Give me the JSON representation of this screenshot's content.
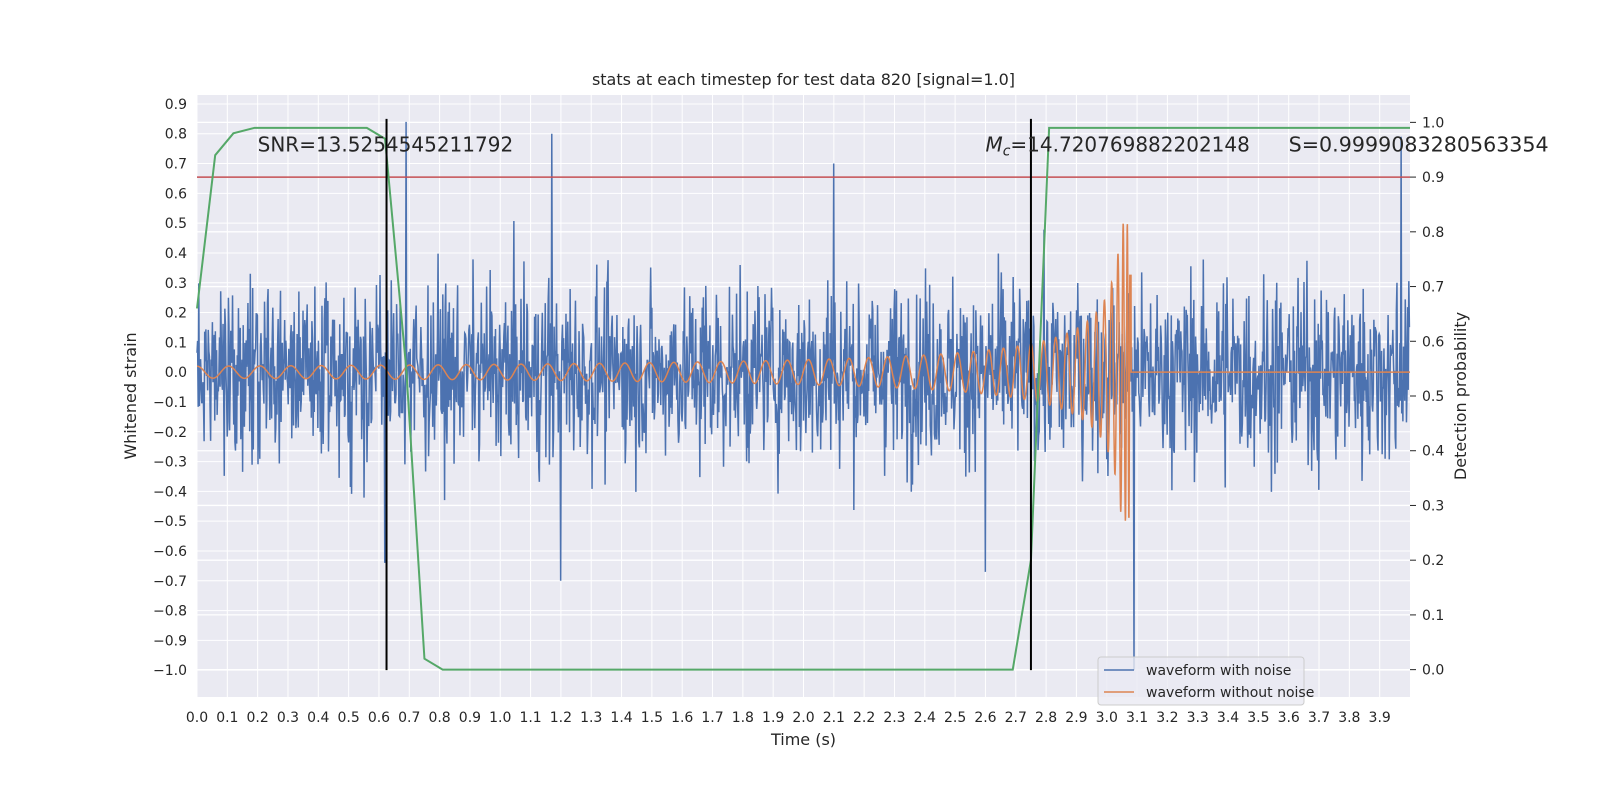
{
  "chart_data": {
    "type": "line",
    "title": "stats at each timestep for test data 820 [signal=1.0]",
    "xlabel": "Time (s)",
    "ylabel_left": "Whitened strain",
    "ylabel_right": "Detection probability",
    "xlim": [
      0.0,
      4.0
    ],
    "ylim_left": [
      -1.09,
      0.93
    ],
    "ylim_right": [
      -0.05,
      1.05
    ],
    "x_ticks": [
      "0.0",
      "0.1",
      "0.2",
      "0.3",
      "0.4",
      "0.5",
      "0.6",
      "0.7",
      "0.8",
      "0.9",
      "1.0",
      "1.1",
      "1.2",
      "1.3",
      "1.4",
      "1.5",
      "1.6",
      "1.7",
      "1.8",
      "1.9",
      "2.0",
      "2.1",
      "2.2",
      "2.3",
      "2.4",
      "2.5",
      "2.6",
      "2.7",
      "2.8",
      "2.9",
      "3.0",
      "3.1",
      "3.2",
      "3.3",
      "3.4",
      "3.5",
      "3.6",
      "3.7",
      "3.8",
      "3.9"
    ],
    "y_ticks_left": [
      "0.9",
      "0.8",
      "0.7",
      "0.6",
      "0.5",
      "0.4",
      "0.3",
      "0.2",
      "0.1",
      "0.0",
      "−0.1",
      "−0.2",
      "−0.3",
      "−0.4",
      "−0.5",
      "−0.6",
      "−0.7",
      "−0.8",
      "−0.9",
      "−1.0"
    ],
    "y_ticks_right": [
      "1.0",
      "0.9",
      "0.8",
      "0.7",
      "0.6",
      "0.5",
      "0.4",
      "0.3",
      "0.2",
      "0.1",
      "0.0"
    ],
    "series": [
      {
        "name": "waveform with noise",
        "axis": "left",
        "color": "#4c72b0",
        "description": "noisy whitened strain, amplitude roughly +/-0.5, spikes up to 0.85 and down to -1.0 near t=3.1",
        "sample_rate": 512,
        "spikes": [
          [
            0.62,
            -0.64
          ],
          [
            0.69,
            0.84
          ],
          [
            1.17,
            0.8
          ],
          [
            1.2,
            -0.7
          ],
          [
            2.1,
            0.7
          ],
          [
            2.6,
            -0.67
          ],
          [
            3.09,
            -1.0
          ],
          [
            3.97,
            0.79
          ]
        ]
      },
      {
        "name": "waveform without noise",
        "axis": "left",
        "color": "#dd8452",
        "description": "chirp signal rising in frequency and amplitude, merging at about t=3.08 s then flat at 0",
        "merger_time": 3.08,
        "initial_amplitude": 0.02,
        "peak_amplitude": 0.5
      },
      {
        "name": "detection probability",
        "axis": "right",
        "color": "#55a868",
        "x": [
          0.0,
          0.06,
          0.12,
          0.19,
          0.25,
          0.31,
          0.37,
          0.44,
          0.5,
          0.56,
          0.62,
          0.69,
          0.75,
          0.81,
          0.87,
          0.94,
          1.0,
          1.25,
          1.5,
          2.0,
          2.5,
          2.62,
          2.69,
          2.75,
          2.81,
          2.87,
          3.0,
          3.5,
          4.0
        ],
        "y": [
          0.66,
          0.94,
          0.98,
          0.99,
          0.99,
          0.99,
          0.99,
          0.99,
          0.99,
          0.99,
          0.97,
          0.55,
          0.02,
          0.0,
          0.0,
          0.0,
          0.0,
          0.0,
          0.0,
          0.0,
          0.0,
          0.0,
          0.0,
          0.2,
          0.99,
          0.99,
          0.99,
          0.99,
          0.99
        ]
      }
    ],
    "threshold": {
      "axis": "right",
      "value": 0.9,
      "color": "#c44e52"
    },
    "vlines": [
      0.625,
      2.75
    ],
    "vlines_extent_left": [
      -1.0,
      0.85
    ],
    "annotations": [
      {
        "text": "SNR=13.5254545211792",
        "x": 0.2,
        "y": 0.95,
        "axis": "right"
      },
      {
        "text_prefix": "M",
        "text_sub": "c",
        "text_rest": "=14.720769882202148",
        "x": 2.6,
        "y": 0.95,
        "axis": "right"
      },
      {
        "text": "S=0.9999083280563354",
        "x": 3.6,
        "y": 0.95,
        "axis": "right",
        "italic_char": "S"
      }
    ],
    "legend": {
      "position": "lower-right",
      "entries": [
        {
          "label": "waveform with noise",
          "color": "#4c72b0"
        },
        {
          "label": "waveform without noise",
          "color": "#dd8452"
        }
      ]
    },
    "grid": true,
    "background_color": "#eaeaf2"
  }
}
